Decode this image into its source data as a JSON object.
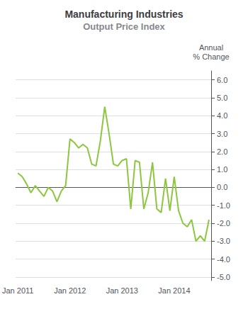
{
  "chart_data": {
    "type": "line",
    "title": "Manufacturing Industries",
    "subtitle": "Output Price Index",
    "ylabel": "Annual\n% Change",
    "color": "#8dc63f",
    "categories": [
      "Jan 2011",
      null,
      null,
      null,
      null,
      null,
      null,
      null,
      null,
      null,
      null,
      null,
      "Jan 2012",
      null,
      null,
      null,
      null,
      null,
      null,
      null,
      null,
      null,
      null,
      null,
      "Jan 2013",
      null,
      null,
      null,
      null,
      null,
      null,
      null,
      null,
      null,
      null,
      null,
      "Jan 2014",
      null,
      null,
      null,
      null,
      null,
      null,
      null,
      null
    ],
    "values": [
      0.8,
      0.6,
      0.2,
      -0.3,
      0.1,
      -0.2,
      -0.5,
      0.0,
      -0.2,
      -0.8,
      -0.2,
      0.1,
      2.7,
      2.5,
      2.2,
      2.4,
      2.2,
      1.3,
      1.2,
      2.6,
      4.5,
      3.0,
      1.3,
      1.2,
      1.5,
      1.6,
      -1.2,
      1.5,
      1.4,
      -1.2,
      -0.3,
      1.4,
      -1.2,
      -1.4,
      0.5,
      -1.3,
      0.6,
      -1.3,
      -2.0,
      -2.2,
      -1.8,
      -3.0,
      -2.7,
      -3.0,
      -1.8
    ],
    "ylim": [
      -5.2,
      6.5
    ],
    "yticks": [
      {
        "value": -5,
        "label": "-5.0"
      },
      {
        "value": -4,
        "label": "-4.0"
      },
      {
        "value": -3,
        "label": "-3.0"
      },
      {
        "value": -2,
        "label": "-2.0"
      },
      {
        "value": -1,
        "label": "-1.0"
      },
      {
        "value": 0,
        "label": "0.0"
      },
      {
        "value": 1,
        "label": "1.0"
      },
      {
        "value": 2,
        "label": "2.0"
      },
      {
        "value": 3,
        "label": "3.0"
      },
      {
        "value": 4,
        "label": "4.0"
      },
      {
        "value": 5,
        "label": "5.0"
      },
      {
        "value": 6,
        "label": "6.0"
      }
    ],
    "grid": true
  }
}
